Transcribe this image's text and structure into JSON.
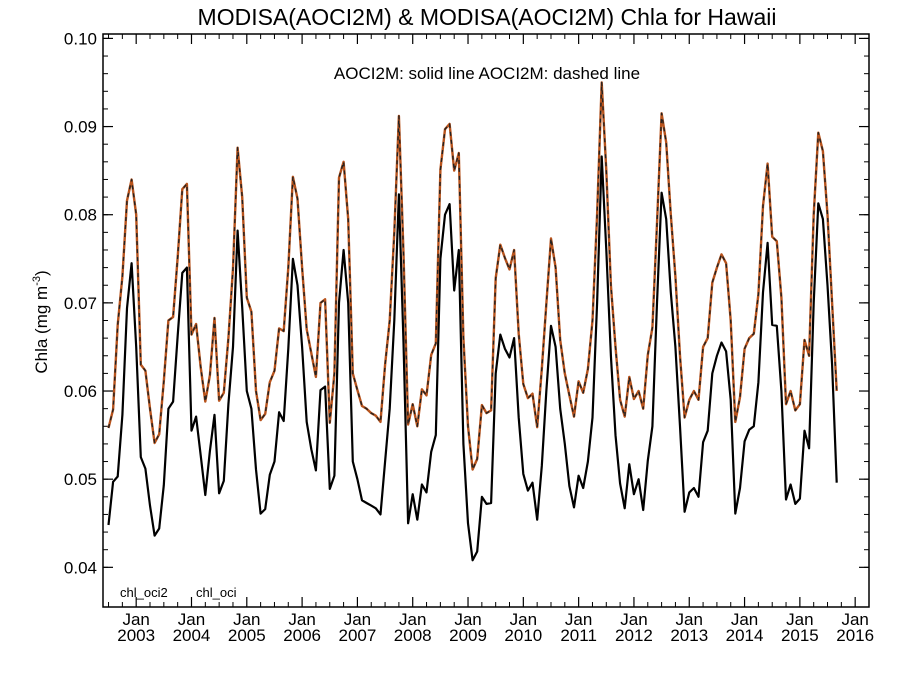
{
  "chart_data": {
    "type": "line",
    "title": "MODISA(AOCI2M) & MODISA(AOCI2M)  Chla for Hawaii",
    "subtitle": "AOCI2M: solid line   AOCI2M: dashed line",
    "ylabel_main": "Chla (mg m",
    "ylabel_sup": "-3",
    "ylabel_close": ")",
    "ylim": [
      0.0355,
      0.1005
    ],
    "xlim": [
      2002.4,
      2016.25
    ],
    "yticks": [
      {
        "value": 0.04,
        "label": "0.04"
      },
      {
        "value": 0.05,
        "label": "0.05"
      },
      {
        "value": 0.06,
        "label": "0.06"
      },
      {
        "value": 0.07,
        "label": "0.07"
      },
      {
        "value": 0.08,
        "label": "0.08"
      },
      {
        "value": 0.09,
        "label": "0.09"
      },
      {
        "value": 0.1,
        "label": "0.10"
      }
    ],
    "xticks": [
      {
        "value": 2003,
        "month": "Jan",
        "year": "2003"
      },
      {
        "value": 2004,
        "month": "Jan",
        "year": "2004"
      },
      {
        "value": 2005,
        "month": "Jan",
        "year": "2005"
      },
      {
        "value": 2006,
        "month": "Jan",
        "year": "2006"
      },
      {
        "value": 2007,
        "month": "Jan",
        "year": "2007"
      },
      {
        "value": 2008,
        "month": "Jan",
        "year": "2008"
      },
      {
        "value": 2009,
        "month": "Jan",
        "year": "2009"
      },
      {
        "value": 2010,
        "month": "Jan",
        "year": "2010"
      },
      {
        "value": 2011,
        "month": "Jan",
        "year": "2011"
      },
      {
        "value": 2012,
        "month": "Jan",
        "year": "2012"
      },
      {
        "value": 2013,
        "month": "Jan",
        "year": "2013"
      },
      {
        "value": 2014,
        "month": "Jan",
        "year": "2014"
      },
      {
        "value": 2015,
        "month": "Jan",
        "year": "2015"
      },
      {
        "value": 2016,
        "month": "Jan",
        "year": "2016"
      }
    ],
    "grid": false,
    "legend_position": "bottom-left",
    "start": 2002.5,
    "step": 0.0833333,
    "series": [
      {
        "name": "chl_oci2",
        "color": "#b8531c",
        "dash_color": "#222222",
        "style": "dashed",
        "values": [
          0.0558,
          0.0579,
          0.0675,
          0.073,
          0.0816,
          0.084,
          0.08,
          0.063,
          0.0623,
          0.058,
          0.0541,
          0.0551,
          0.0611,
          0.068,
          0.0684,
          0.0752,
          0.0829,
          0.0835,
          0.0664,
          0.0676,
          0.0627,
          0.0588,
          0.0618,
          0.0683,
          0.0589,
          0.0598,
          0.066,
          0.0739,
          0.0876,
          0.082,
          0.0706,
          0.069,
          0.06,
          0.0567,
          0.0574,
          0.061,
          0.0623,
          0.0671,
          0.0668,
          0.074,
          0.0843,
          0.0818,
          0.074,
          0.067,
          0.0643,
          0.0616,
          0.07,
          0.0704,
          0.0564,
          0.062,
          0.0842,
          0.086,
          0.0795,
          0.062,
          0.0601,
          0.0583,
          0.058,
          0.0575,
          0.0572,
          0.0565,
          0.063,
          0.068,
          0.078,
          0.0912,
          0.0756,
          0.0562,
          0.0585,
          0.056,
          0.0602,
          0.0595,
          0.0641,
          0.0654,
          0.0851,
          0.0897,
          0.0903,
          0.085,
          0.087,
          0.066,
          0.056,
          0.0511,
          0.0523,
          0.0584,
          0.0575,
          0.0578,
          0.0728,
          0.0766,
          0.0751,
          0.0738,
          0.076,
          0.0665,
          0.0608,
          0.0592,
          0.0597,
          0.0559,
          0.0625,
          0.07,
          0.0773,
          0.074,
          0.0658,
          0.062,
          0.0595,
          0.0571,
          0.0611,
          0.0598,
          0.0625,
          0.068,
          0.08,
          0.095,
          0.085,
          0.072,
          0.065,
          0.059,
          0.0571,
          0.0616,
          0.0591,
          0.06,
          0.058,
          0.0641,
          0.0672,
          0.079,
          0.0915,
          0.0882,
          0.08,
          0.073,
          0.064,
          0.057,
          0.059,
          0.06,
          0.059,
          0.065,
          0.066,
          0.0723,
          0.074,
          0.0755,
          0.0745,
          0.068,
          0.0565,
          0.0593,
          0.0648,
          0.066,
          0.0665,
          0.071,
          0.081,
          0.0858,
          0.0775,
          0.077,
          0.0706,
          0.0585,
          0.06,
          0.0578,
          0.0585,
          0.0658,
          0.064,
          0.08,
          0.0893,
          0.0872,
          0.08,
          0.07,
          0.06
        ]
      },
      {
        "name": "chl_oci",
        "color": "#000000",
        "style": "solid",
        "values": [
          0.0448,
          0.0497,
          0.0503,
          0.0573,
          0.0694,
          0.0745,
          0.065,
          0.0525,
          0.0512,
          0.047,
          0.0436,
          0.0444,
          0.0493,
          0.058,
          0.0588,
          0.0663,
          0.0734,
          0.074,
          0.0555,
          0.0571,
          0.0527,
          0.0482,
          0.0532,
          0.0573,
          0.0484,
          0.0498,
          0.0585,
          0.065,
          0.0782,
          0.0695,
          0.06,
          0.058,
          0.0511,
          0.0461,
          0.0466,
          0.0505,
          0.052,
          0.0576,
          0.0566,
          0.0648,
          0.075,
          0.072,
          0.065,
          0.0565,
          0.0534,
          0.051,
          0.0601,
          0.0605,
          0.0489,
          0.0504,
          0.07,
          0.076,
          0.07,
          0.052,
          0.05,
          0.0476,
          0.0473,
          0.047,
          0.0467,
          0.046,
          0.052,
          0.058,
          0.068,
          0.0823,
          0.0655,
          0.045,
          0.0483,
          0.0454,
          0.0494,
          0.0485,
          0.0531,
          0.055,
          0.075,
          0.08,
          0.0812,
          0.0714,
          0.076,
          0.054,
          0.045,
          0.0408,
          0.0418,
          0.048,
          0.0472,
          0.0473,
          0.062,
          0.0664,
          0.0648,
          0.0638,
          0.066,
          0.057,
          0.0506,
          0.0487,
          0.0496,
          0.0454,
          0.0515,
          0.0601,
          0.0674,
          0.065,
          0.058,
          0.054,
          0.0492,
          0.0468,
          0.0504,
          0.049,
          0.052,
          0.057,
          0.07,
          0.0866,
          0.076,
          0.064,
          0.055,
          0.0495,
          0.0467,
          0.0517,
          0.0483,
          0.05,
          0.0465,
          0.0521,
          0.056,
          0.07,
          0.0825,
          0.0795,
          0.0712,
          0.065,
          0.056,
          0.0463,
          0.0485,
          0.049,
          0.048,
          0.0542,
          0.0555,
          0.062,
          0.064,
          0.0655,
          0.0645,
          0.059,
          0.0461,
          0.049,
          0.0543,
          0.0556,
          0.056,
          0.061,
          0.0712,
          0.0768,
          0.0675,
          0.0674,
          0.06,
          0.0477,
          0.0494,
          0.0472,
          0.0478,
          0.0555,
          0.0535,
          0.07,
          0.0813,
          0.0795,
          0.072,
          0.063,
          0.0496
        ]
      }
    ]
  }
}
